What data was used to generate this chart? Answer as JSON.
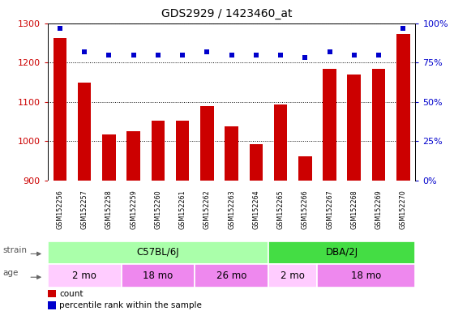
{
  "title": "GDS2929 / 1423460_at",
  "samples": [
    "GSM152256",
    "GSM152257",
    "GSM152258",
    "GSM152259",
    "GSM152260",
    "GSM152261",
    "GSM152262",
    "GSM152263",
    "GSM152264",
    "GSM152265",
    "GSM152266",
    "GSM152267",
    "GSM152268",
    "GSM152269",
    "GSM152270"
  ],
  "counts": [
    1262,
    1148,
    1018,
    1025,
    1052,
    1052,
    1090,
    1037,
    993,
    1093,
    962,
    1185,
    1170,
    1185,
    1272
  ],
  "percentile_ranks": [
    97,
    82,
    80,
    80,
    80,
    80,
    82,
    80,
    80,
    80,
    78,
    82,
    80,
    80,
    97
  ],
  "ylim_left": [
    900,
    1300
  ],
  "ylim_right": [
    0,
    100
  ],
  "yticks_left": [
    900,
    1000,
    1100,
    1200,
    1300
  ],
  "yticks_right": [
    0,
    25,
    50,
    75,
    100
  ],
  "bar_color": "#cc0000",
  "dot_color": "#0000cc",
  "strain_groups": [
    {
      "label": "C57BL/6J",
      "start": 0,
      "end": 9,
      "color": "#aaffaa"
    },
    {
      "label": "DBA/2J",
      "start": 9,
      "end": 15,
      "color": "#44dd44"
    }
  ],
  "age_groups": [
    {
      "label": "2 mo",
      "start": 0,
      "end": 3,
      "color": "#ffccff"
    },
    {
      "label": "18 mo",
      "start": 3,
      "end": 6,
      "color": "#ee88ee"
    },
    {
      "label": "26 mo",
      "start": 6,
      "end": 9,
      "color": "#ee88ee"
    },
    {
      "label": "2 mo",
      "start": 9,
      "end": 11,
      "color": "#ffccff"
    },
    {
      "label": "18 mo",
      "start": 11,
      "end": 15,
      "color": "#ee88ee"
    }
  ],
  "xlabels_bg": "#cccccc",
  "legend_count_color": "#cc0000",
  "legend_pct_color": "#0000cc"
}
